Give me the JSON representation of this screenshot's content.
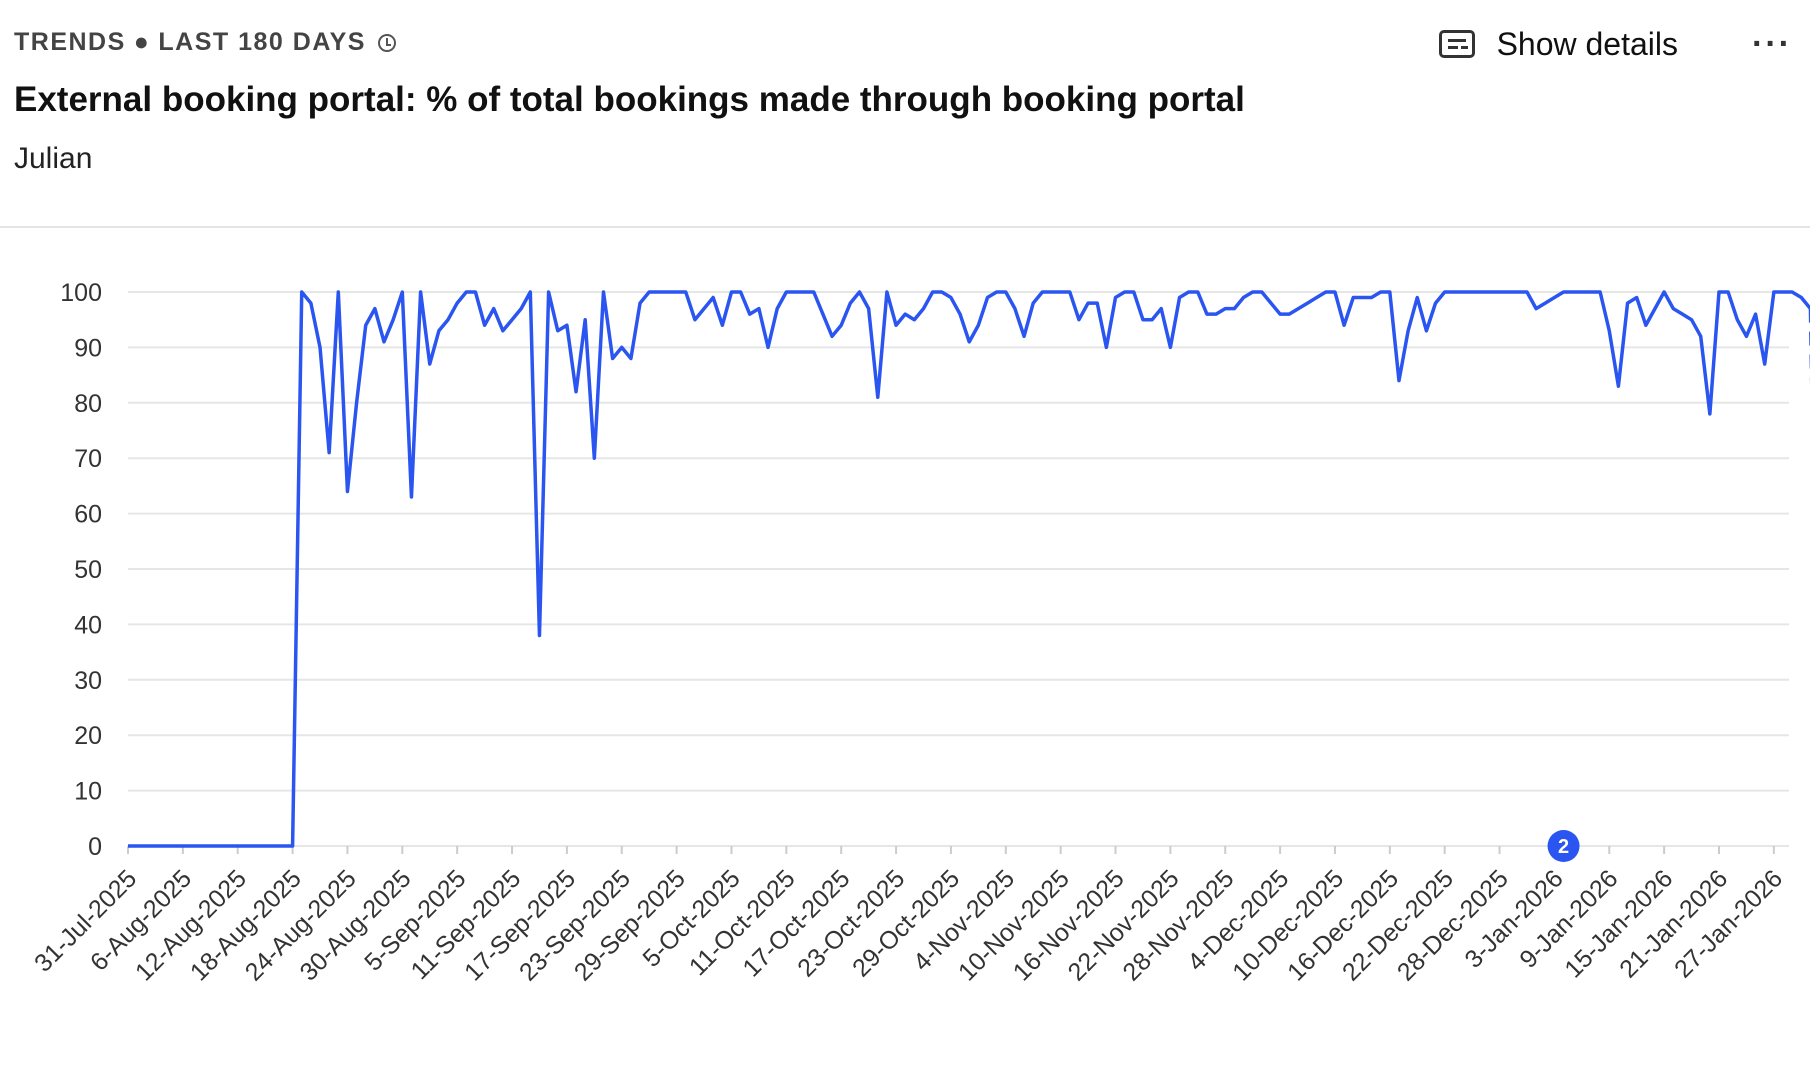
{
  "header": {
    "eyebrow_label": "TRENDS",
    "eyebrow_separator": "●",
    "eyebrow_range": "LAST 180 DAYS",
    "clock_icon": "clock-icon",
    "title": "External booking portal: % of total bookings made through booking portal",
    "subtitle": "Julian",
    "show_details_label": "Show details",
    "show_details_icon": "details-icon",
    "more_label": "···",
    "more_icon": "more-icon"
  },
  "chart_data": {
    "type": "line",
    "line_color": "#2a55f0",
    "grid": true,
    "ylim": [
      0,
      100
    ],
    "yticks": [
      0,
      10,
      20,
      30,
      40,
      50,
      60,
      70,
      80,
      90,
      100
    ],
    "x_start": "31-Jul-2025",
    "x_end": "28-Jan-2026",
    "xtick_labels": [
      "31-Jul-2025",
      "6-Aug-2025",
      "12-Aug-2025",
      "18-Aug-2025",
      "24-Aug-2025",
      "30-Aug-2025",
      "5-Sep-2025",
      "11-Sep-2025",
      "17-Sep-2025",
      "23-Sep-2025",
      "29-Sep-2025",
      "5-Oct-2025",
      "11-Oct-2025",
      "17-Oct-2025",
      "23-Oct-2025",
      "29-Oct-2025",
      "4-Nov-2025",
      "10-Nov-2025",
      "16-Nov-2025",
      "22-Nov-2025",
      "28-Nov-2025",
      "4-Dec-2025",
      "10-Dec-2025",
      "16-Dec-2025",
      "22-Dec-2025",
      "28-Dec-2025",
      "3-Jan-2026",
      "9-Jan-2026",
      "15-Jan-2026",
      "21-Jan-2026",
      "27-Jan-2026"
    ],
    "annotation": {
      "label": "2",
      "date": "4-Jan-2026",
      "value": 0,
      "color": "#2a55f0"
    },
    "series": [
      {
        "values": [
          0,
          0,
          0,
          0,
          0,
          0,
          0,
          0,
          0,
          0,
          0,
          0,
          0,
          0,
          0,
          0,
          0,
          0,
          0,
          100,
          98,
          90,
          71,
          100,
          64,
          80,
          94,
          97,
          91,
          95,
          100,
          63,
          100,
          87,
          93,
          95,
          98,
          100,
          100,
          94,
          97,
          93,
          95,
          97,
          100,
          38,
          100,
          93,
          94,
          82,
          95,
          70,
          100,
          88,
          90,
          88,
          98,
          100,
          100,
          100,
          100,
          100,
          95,
          97,
          99,
          94,
          100,
          100,
          96,
          97,
          90,
          97,
          100,
          100,
          100,
          100,
          96,
          92,
          94,
          98,
          100,
          97,
          81,
          100,
          94,
          96,
          95,
          97,
          100,
          100,
          99,
          96,
          91,
          94,
          99,
          100,
          100,
          97,
          92,
          98,
          100,
          100,
          100,
          100,
          95,
          98,
          98,
          90,
          99,
          100,
          100,
          95,
          95,
          97,
          90,
          99,
          100,
          100,
          96,
          96,
          97,
          97,
          99,
          100,
          100,
          98,
          96,
          96,
          97,
          98,
          99,
          100,
          100,
          94,
          99,
          99,
          99,
          100,
          100,
          84,
          93,
          99,
          93,
          98,
          100,
          100,
          100,
          100,
          100,
          100,
          100,
          100,
          100,
          100,
          97,
          98,
          99,
          100,
          100,
          100,
          100,
          100,
          93,
          83,
          98,
          99,
          94,
          97,
          100,
          97,
          96,
          95,
          92,
          78,
          100,
          100,
          95,
          92,
          96,
          87,
          100,
          100,
          100,
          99,
          97
        ],
        "partial_last_value": 0
      }
    ]
  }
}
